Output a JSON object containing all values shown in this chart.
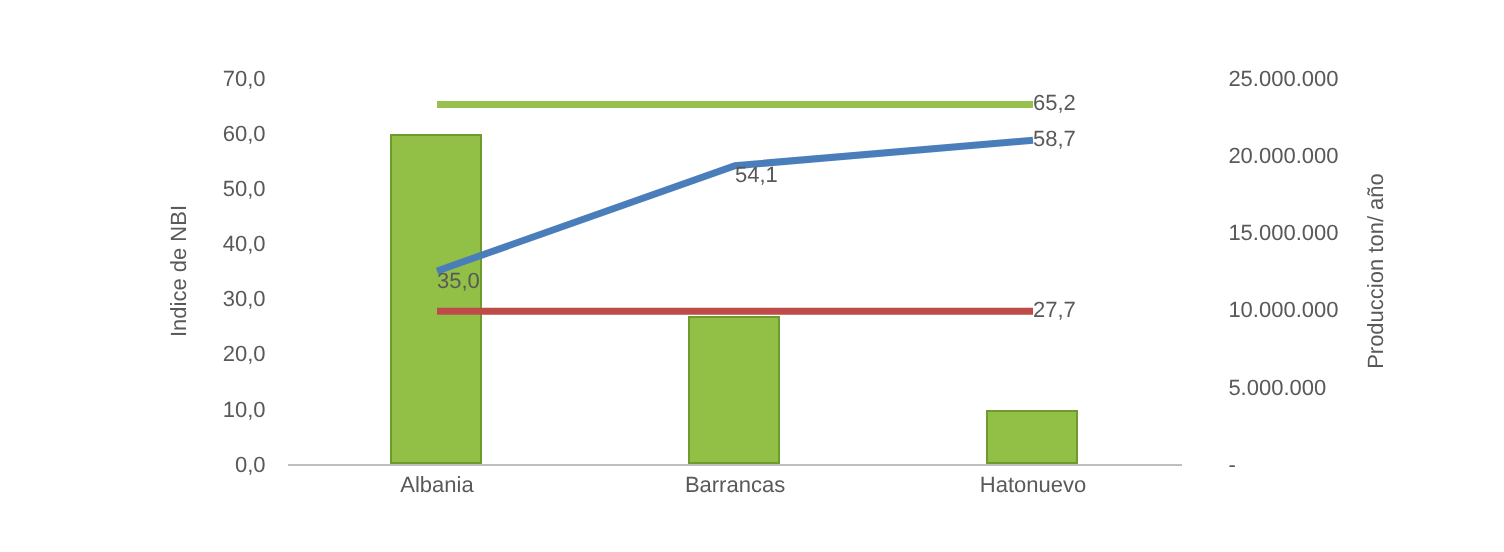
{
  "chart_data": {
    "type": "bar",
    "ylabel": "Indice de NBI",
    "y2label": "Produccion ton/ año",
    "categories": [
      "Albania",
      "Barrancas",
      "Hatonuevo"
    ],
    "series": [
      {
        "axis": "y2",
        "color": "#92c047",
        "values": [
          21200000,
          9400000,
          3400000
        ]
      },
      {
        "type": "line",
        "color": "#4a7ebb",
        "values": [
          35.0,
          54.1,
          58.7
        ],
        "value_labels": [
          "35,0",
          "54,1",
          "58,7"
        ]
      },
      {
        "type": "line",
        "color": "#be4b48",
        "values": [
          27.7,
          27.7,
          27.7
        ],
        "value_labels": [
          null,
          null,
          "27,7"
        ]
      },
      {
        "type": "line",
        "color": "#98c04e",
        "values": [
          65.2,
          65.2,
          65.2
        ],
        "value_labels": [
          null,
          null,
          "65,2"
        ]
      }
    ],
    "ylim": [
      0,
      70
    ],
    "yticks": [
      {
        "value": 0,
        "label": "0,0"
      },
      {
        "value": 10,
        "label": "10,0"
      },
      {
        "value": 20,
        "label": "20,0"
      },
      {
        "value": 30,
        "label": "30,0"
      },
      {
        "value": 40,
        "label": "40,0"
      },
      {
        "value": 50,
        "label": "50,0"
      },
      {
        "value": 60,
        "label": "60,0"
      },
      {
        "value": 70,
        "label": "70,0"
      }
    ],
    "y2lim": [
      0,
      25000000
    ],
    "y2ticks": [
      {
        "value": 0,
        "label": "-"
      },
      {
        "value": 5000000,
        "label": "5.000.000"
      },
      {
        "value": 10000000,
        "label": "10.000.000"
      },
      {
        "value": 15000000,
        "label": "15.000.000"
      },
      {
        "value": 20000000,
        "label": "20.000.000"
      },
      {
        "value": 25000000,
        "label": "25.000.000"
      }
    ],
    "marker": "none",
    "line_style": "solid"
  }
}
